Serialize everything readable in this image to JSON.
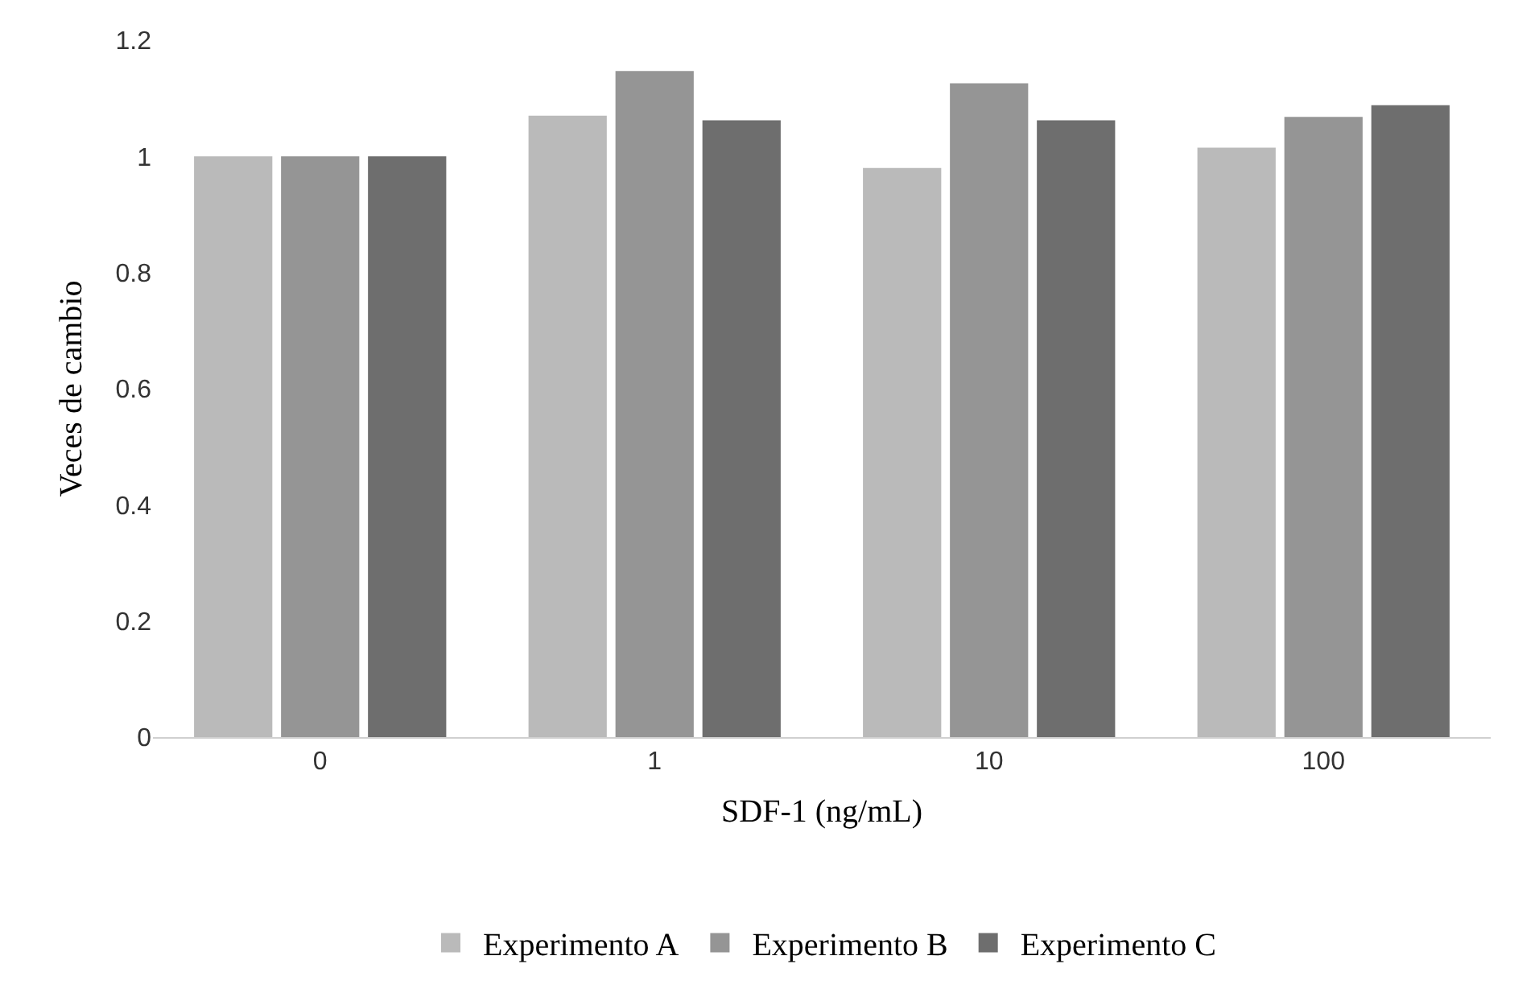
{
  "chart_data": {
    "type": "bar",
    "xlabel": "SDF-1 (ng/mL)",
    "ylabel": "Veces de cambio",
    "categories": [
      "0",
      "1",
      "10",
      "100"
    ],
    "series": [
      {
        "name": "Experimento A",
        "color": "#bababa",
        "values": [
          1.0,
          1.07,
          0.98,
          1.015
        ]
      },
      {
        "name": "Experimento B",
        "color": "#959595",
        "values": [
          1.0,
          1.147,
          1.126,
          1.068
        ]
      },
      {
        "name": "Experimento C",
        "color": "#6e6e6e",
        "values": [
          1.0,
          1.062,
          1.062,
          1.088
        ]
      }
    ],
    "ylim": [
      0,
      1.2
    ],
    "yticks": [
      {
        "value": 0,
        "label": "0"
      },
      {
        "value": 0.2,
        "label": "0.2"
      },
      {
        "value": 0.4,
        "label": "0.4"
      },
      {
        "value": 0.6,
        "label": "0.6"
      },
      {
        "value": 0.8,
        "label": "0.8"
      },
      {
        "value": 1,
        "label": "1"
      },
      {
        "value": 1.2,
        "label": "1.2"
      }
    ],
    "legend": "bottom"
  }
}
